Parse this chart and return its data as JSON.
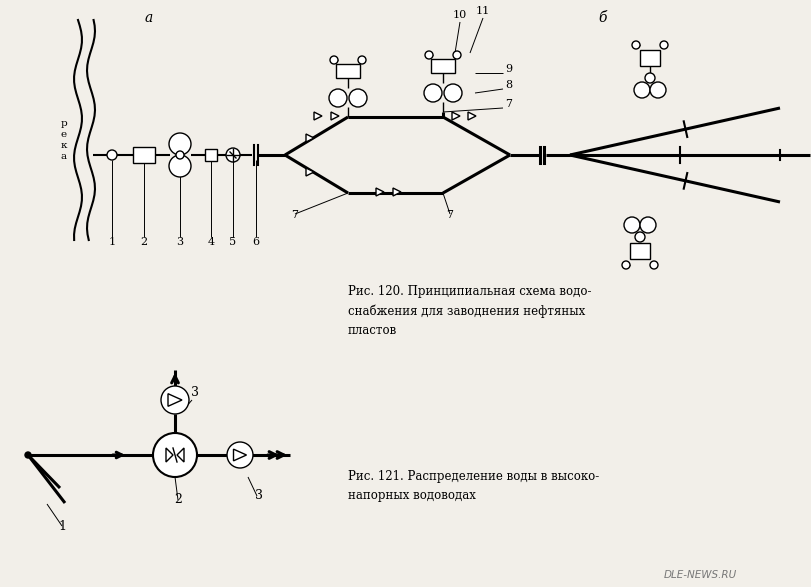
{
  "background_color": "#f2efe9",
  "fig_caption_120": "Рис. 120. Принципиальная схема водо-\nснабжения для заводнения нефтяных\nпластов",
  "fig_caption_121": "Рис. 121. Распределение воды в высоко-\nнапорных водоводах",
  "label_a": "а",
  "label_b": "б",
  "watermark": "DLE-NEWS.RU"
}
